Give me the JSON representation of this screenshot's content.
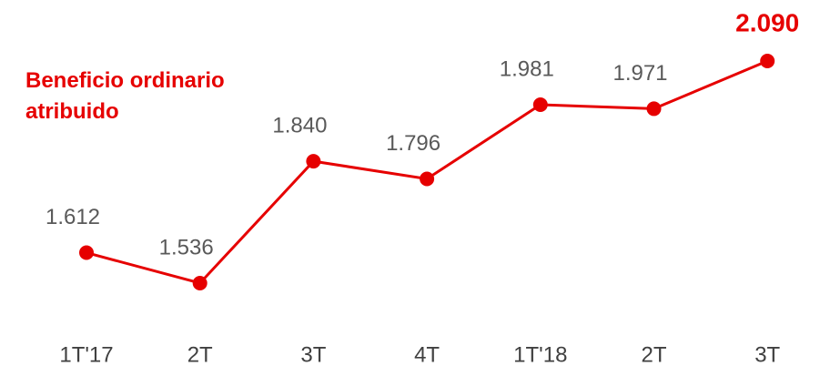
{
  "chart_data": {
    "type": "line",
    "title": "Beneficio ordinario atribuido",
    "categories": [
      "1T'17",
      "2T",
      "3T",
      "4T",
      "1T'18",
      "2T",
      "3T"
    ],
    "series": [
      {
        "name": null,
        "color": "#e60000",
        "values": [
          1612,
          1536,
          1840,
          1796,
          1981,
          1971,
          2090
        ],
        "value_labels": [
          "1.612",
          "1.536",
          "1.840",
          "1.796",
          "1.981",
          "1.971",
          "2.090"
        ]
      }
    ]
  }
}
